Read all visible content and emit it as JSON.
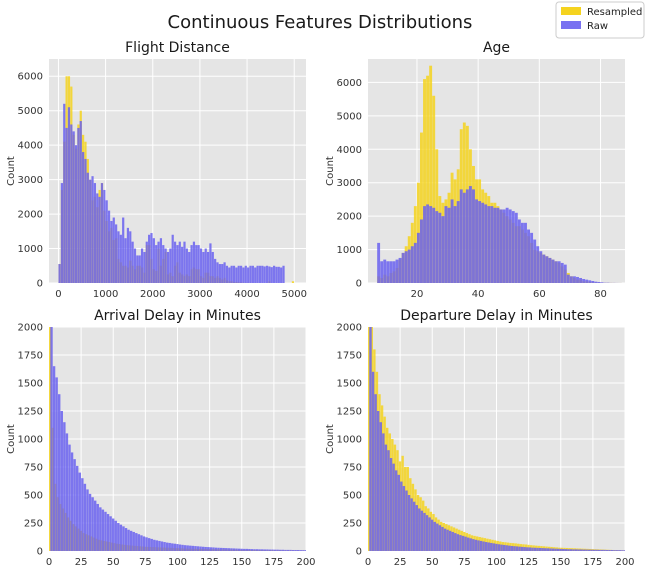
{
  "figure": {
    "title": "Continuous Features Distributions"
  },
  "legend": {
    "placement": "top-right",
    "items": [
      {
        "label": "Resampled",
        "color": "#f5d31f"
      },
      {
        "label": "Raw",
        "color": "#6a62f0"
      }
    ]
  },
  "chart_data": [
    {
      "type": "bar",
      "title": "Flight Distance",
      "xlabel": "",
      "ylabel": "Count",
      "xlim": [
        -200,
        5250
      ],
      "ylim": [
        0,
        6500
      ],
      "xticks": [
        0,
        1000,
        2000,
        3000,
        4000,
        5000
      ],
      "yticks": [
        0,
        1000,
        2000,
        3000,
        4000,
        5000,
        6000
      ],
      "grid": true,
      "bin_width": 50,
      "series": [
        {
          "name": "Resampled",
          "x_start": 0,
          "values": [
            550,
            2700,
            4100,
            6000,
            6000,
            5700,
            4300,
            3900,
            4600,
            5000,
            4300,
            4100,
            3600,
            3000,
            2400,
            2500,
            2200,
            2700,
            2900,
            2100,
            1800,
            1500,
            1600,
            1250,
            1300,
            700,
            600,
            500,
            500,
            450,
            650,
            500,
            400,
            500,
            500,
            450,
            300,
            1100,
            1100,
            700,
            400,
            350,
            1000,
            500,
            700,
            900,
            250,
            300,
            200,
            500,
            600,
            300,
            250,
            200,
            250,
            200,
            400,
            450,
            400,
            400,
            200,
            150,
            300,
            300,
            200,
            200,
            150,
            200,
            150,
            100,
            150,
            80,
            50,
            50,
            30,
            30,
            20,
            20,
            10,
            5,
            5,
            5,
            3,
            3,
            2,
            2,
            2,
            1,
            1,
            50,
            1,
            1,
            1,
            1,
            1,
            1,
            1,
            1,
            1,
            50
          ]
        },
        {
          "name": "Raw",
          "x_start": 0,
          "values": [
            550,
            2900,
            5200,
            4500,
            5100,
            4600,
            4400,
            4000,
            4500,
            4700,
            3800,
            3600,
            3200,
            3000,
            3100,
            2900,
            2600,
            2500,
            2900,
            2700,
            2400,
            2100,
            1800,
            1900,
            1700,
            1500,
            1400,
            1900,
            1300,
            1600,
            1500,
            1200,
            1000,
            800,
            800,
            1000,
            900,
            1200,
            1400,
            1450,
            1300,
            1100,
            1200,
            1300,
            1100,
            1000,
            900,
            1000,
            1400,
            1200,
            1100,
            1200,
            1050,
            1200,
            1000,
            900,
            1100,
            1200,
            1100,
            1100,
            1000,
            900,
            1000,
            900,
            1150,
            900,
            700,
            600,
            550,
            550,
            600,
            500,
            450,
            500,
            500,
            450,
            500,
            500,
            450,
            500,
            450,
            500,
            500,
            450,
            500,
            500,
            500,
            480,
            500,
            480,
            460,
            500,
            470,
            470,
            450,
            500
          ]
        }
      ]
    },
    {
      "type": "bar",
      "title": "Age",
      "xlabel": "",
      "ylabel": "Count",
      "xlim": [
        4,
        88
      ],
      "ylim": [
        0,
        6700
      ],
      "xticks": [
        20,
        40,
        60,
        80
      ],
      "yticks": [
        0,
        1000,
        2000,
        3000,
        4000,
        5000,
        6000
      ],
      "grid": true,
      "bin_width": 1,
      "series": [
        {
          "name": "Resampled",
          "x_start": 7,
          "values": [
            200,
            150,
            250,
            200,
            300,
            350,
            450,
            700,
            900,
            1100,
            1400,
            1800,
            2300,
            3000,
            4500,
            6100,
            6200,
            6500,
            5600,
            4000,
            2600,
            2400,
            2500,
            2700,
            3300,
            3100,
            3400,
            4600,
            4800,
            4700,
            4000,
            3500,
            3100,
            3100,
            2800,
            2700,
            2600,
            2400,
            2400,
            2300,
            2200,
            2100,
            2000,
            1900,
            1800,
            1700,
            1700,
            1600,
            1500,
            1400,
            1200,
            1000,
            950,
            900,
            850,
            800,
            750,
            700,
            650,
            600,
            500,
            400,
            300,
            200,
            150,
            100,
            100,
            50,
            50,
            30,
            20,
            10,
            10,
            5,
            5,
            5,
            5,
            3,
            2,
            2
          ]
        },
        {
          "name": "Raw",
          "x_start": 7,
          "values": [
            1200,
            650,
            700,
            650,
            650,
            650,
            700,
            750,
            900,
            950,
            1000,
            1100,
            1200,
            1500,
            1900,
            2300,
            2350,
            2300,
            2250,
            2150,
            2100,
            2000,
            2300,
            2250,
            2500,
            2300,
            2450,
            2800,
            2700,
            2800,
            2900,
            2800,
            2500,
            2450,
            2400,
            2350,
            2300,
            2300,
            2250,
            2250,
            2200,
            2200,
            2250,
            2200,
            2150,
            2100,
            1900,
            1800,
            1800,
            1600,
            1500,
            1300,
            1100,
            950,
            850,
            800,
            750,
            700,
            650,
            650,
            600,
            550,
            250,
            200,
            200,
            180,
            150,
            120,
            100,
            80,
            60,
            40,
            30,
            20,
            10,
            10,
            5,
            5,
            3,
            2
          ]
        }
      ]
    },
    {
      "type": "bar",
      "title": "Arrival Delay in Minutes",
      "xlabel": "",
      "ylabel": "Count",
      "xlim": [
        0,
        200
      ],
      "ylim": [
        0,
        2000
      ],
      "xticks": [
        0,
        25,
        50,
        75,
        100,
        125,
        150,
        175,
        200
      ],
      "yticks": [
        0,
        250,
        500,
        750,
        1000,
        1250,
        1500,
        1750,
        2000
      ],
      "grid": true,
      "bin_width": 2,
      "series": [
        {
          "name": "Resampled",
          "x_start": 0,
          "values": [
            2000,
            1100,
            600,
            480,
            420,
            380,
            340,
            300,
            270,
            240,
            220,
            200,
            180,
            160,
            150,
            140,
            130,
            120,
            110,
            100,
            95,
            90,
            85,
            80,
            75,
            70,
            65,
            62,
            58,
            55,
            52,
            50,
            48,
            46,
            44,
            42,
            40,
            38,
            37,
            36,
            35,
            34,
            33,
            32,
            31,
            30,
            29,
            28,
            27,
            26,
            25,
            24,
            23,
            22,
            21,
            20,
            20,
            19,
            19,
            18,
            18,
            17,
            17,
            16,
            16,
            15,
            15,
            14,
            14,
            13,
            13,
            12,
            12,
            11,
            11,
            10,
            10,
            10,
            9,
            9,
            9,
            8,
            8,
            8,
            7,
            7,
            7,
            6,
            6,
            6,
            6,
            5,
            5,
            5,
            5,
            4,
            4,
            4,
            4,
            3
          ]
        },
        {
          "name": "Raw",
          "x_start": 1,
          "values": [
            2000,
            1650,
            1550,
            1400,
            1250,
            1150,
            1050,
            950,
            880,
            820,
            760,
            700,
            650,
            600,
            550,
            510,
            480,
            450,
            420,
            390,
            370,
            350,
            330,
            310,
            290,
            270,
            250,
            235,
            220,
            205,
            190,
            180,
            170,
            160,
            150,
            140,
            130,
            122,
            115,
            108,
            100,
            95,
            90,
            85,
            80,
            75,
            72,
            68,
            65,
            62,
            58,
            55,
            52,
            50,
            48,
            46,
            44,
            42,
            40,
            38,
            36,
            35,
            33,
            32,
            30,
            29,
            28,
            27,
            26,
            25,
            24,
            23,
            22,
            21,
            20,
            19,
            19,
            18,
            17,
            16,
            16,
            15,
            15,
            14,
            14,
            13,
            13,
            12,
            12,
            11,
            11,
            10,
            10,
            10,
            9,
            9,
            9,
            8,
            8,
            8
          ]
        }
      ]
    },
    {
      "type": "bar",
      "title": "Departure Delay in Minutes",
      "xlabel": "",
      "ylabel": "Count",
      "xlim": [
        0,
        200
      ],
      "ylim": [
        0,
        2000
      ],
      "xticks": [
        0,
        25,
        50,
        75,
        100,
        125,
        150,
        175,
        200
      ],
      "yticks": [
        0,
        250,
        500,
        750,
        1000,
        1250,
        1500,
        1750,
        2000
      ],
      "grid": true,
      "bin_width": 2,
      "series": [
        {
          "name": "Resampled",
          "x_start": 0,
          "values": [
            2000,
            2000,
            1800,
            1600,
            1400,
            1300,
            1200,
            1100,
            1050,
            1000,
            950,
            900,
            800,
            850,
            750,
            750,
            650,
            600,
            550,
            500,
            480,
            450,
            400,
            380,
            350,
            330,
            300,
            280,
            260,
            250,
            240,
            230,
            220,
            210,
            200,
            190,
            180,
            170,
            160,
            150,
            140,
            135,
            130,
            125,
            120,
            115,
            110,
            105,
            100,
            95,
            90,
            85,
            80,
            78,
            75,
            72,
            70,
            68,
            65,
            62,
            60,
            58,
            55,
            52,
            50,
            48,
            46,
            44,
            42,
            40,
            38,
            36,
            34,
            32,
            30,
            29,
            28,
            27,
            26,
            25,
            24,
            23,
            22,
            21,
            20,
            19,
            18,
            17,
            16,
            15,
            14,
            13,
            12,
            11,
            10,
            9,
            8,
            7,
            6,
            5
          ]
        },
        {
          "name": "Raw",
          "x_start": 1,
          "values": [
            2000,
            1600,
            1400,
            1250,
            1150,
            1050,
            950,
            900,
            830,
            780,
            720,
            680,
            620,
            580,
            540,
            500,
            470,
            440,
            410,
            380,
            360,
            340,
            320,
            300,
            280,
            260,
            245,
            230,
            215,
            200,
            190,
            180,
            170,
            160,
            150,
            142,
            135,
            128,
            120,
            113,
            106,
            100,
            95,
            90,
            85,
            80,
            76,
            72,
            68,
            64,
            60,
            57,
            54,
            51,
            48,
            45,
            43,
            41,
            39,
            37,
            35,
            33,
            32,
            30,
            29,
            28,
            27,
            26,
            25,
            24,
            23,
            22,
            21,
            20,
            19,
            18,
            17,
            16,
            16,
            15,
            15,
            14,
            14,
            13,
            13,
            12,
            12,
            11,
            11,
            10,
            10,
            10,
            9,
            9,
            9,
            8,
            8,
            8,
            7,
            7
          ]
        }
      ]
    }
  ]
}
